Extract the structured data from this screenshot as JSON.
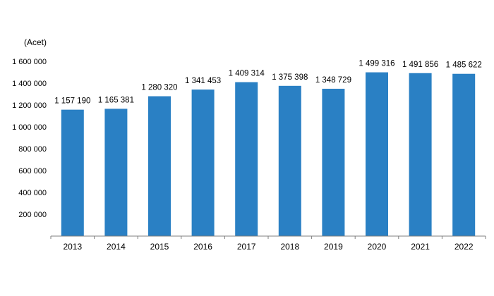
{
  "chart_data": {
    "type": "bar",
    "unit_label": "(Acet)",
    "categories": [
      "2013",
      "2014",
      "2015",
      "2016",
      "2017",
      "2018",
      "2019",
      "2020",
      "2021",
      "2022"
    ],
    "values": [
      1157190,
      1165381,
      1280320,
      1341453,
      1409314,
      1375398,
      1348729,
      1499316,
      1491856,
      1485622
    ],
    "data_labels": [
      "1 157 190",
      "1 165 381",
      "1 280 320",
      "1 341 453",
      "1 409 314",
      "1 375 398",
      "1 348 729",
      "1 499 316",
      "1 491 856",
      "1 485 622"
    ],
    "ylim": [
      0,
      1600000
    ],
    "yticks": [
      200000,
      400000,
      600000,
      800000,
      1000000,
      1200000,
      1400000,
      1600000
    ],
    "ytick_labels": [
      "200 000",
      "400 000",
      "600 000",
      "800 000",
      "1 000 000",
      "1 200 000",
      "1 400 000",
      "1 600 000"
    ],
    "bar_color": "#2a80c4",
    "grid": false,
    "legend": "none"
  }
}
